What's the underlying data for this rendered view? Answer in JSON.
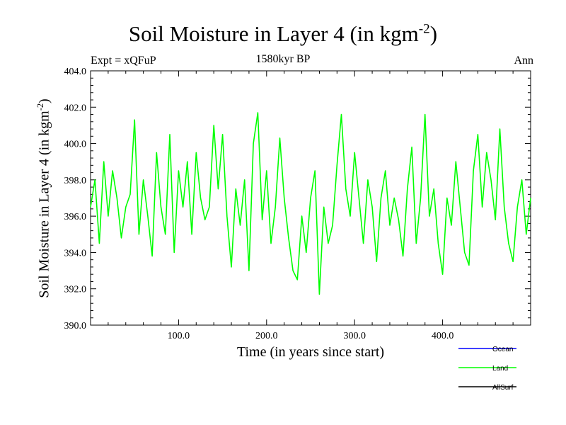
{
  "chart_data": {
    "type": "line",
    "title": "Soil Moisture in Layer 4 (in kgm",
    "title_sup": "-2",
    "title_end": ")",
    "subtitle": "1580kyr BP",
    "experiment": "Expt = xQFuP",
    "season": "Ann",
    "xlabel": "Time (in years since start)",
    "ylabel": "Soil Moisture in Layer 4 (in kgm",
    "ylabel_sup": "-2",
    "ylabel_end": ")",
    "xlim": [
      0,
      500
    ],
    "ylim": [
      390,
      404
    ],
    "xticks": [
      100,
      200,
      300,
      400
    ],
    "xtick_labels": [
      "100.0",
      "200.0",
      "300.0",
      "400.0"
    ],
    "yticks": [
      390,
      392,
      394,
      396,
      398,
      400,
      402,
      404
    ],
    "ytick_labels": [
      "390.0",
      "392.0",
      "394.0",
      "396.0",
      "398.0",
      "400.0",
      "402.0",
      "404.0"
    ],
    "legend": [
      {
        "name": "Ocean",
        "color": "#0000ff"
      },
      {
        "name": "Land",
        "color": "#00ff00"
      },
      {
        "name": "AllSurf",
        "color": "#000000"
      }
    ],
    "series": [
      {
        "name": "Land",
        "color": "#00ff00",
        "x": [
          0,
          5,
          10,
          15,
          20,
          25,
          30,
          35,
          40,
          45,
          50,
          55,
          60,
          65,
          70,
          75,
          80,
          85,
          90,
          95,
          100,
          105,
          110,
          115,
          120,
          125,
          130,
          135,
          140,
          145,
          150,
          155,
          160,
          165,
          170,
          175,
          180,
          185,
          190,
          195,
          200,
          205,
          210,
          215,
          220,
          225,
          230,
          235,
          240,
          245,
          250,
          255,
          260,
          265,
          270,
          275,
          280,
          285,
          290,
          295,
          300,
          305,
          310,
          315,
          320,
          325,
          330,
          335,
          340,
          345,
          350,
          355,
          360,
          365,
          370,
          375,
          380,
          385,
          390,
          395,
          400,
          405,
          410,
          415,
          420,
          425,
          430,
          435,
          440,
          445,
          450,
          455,
          460,
          465,
          470,
          475,
          480,
          485,
          490,
          495,
          500
        ],
        "values": [
          396.5,
          398.0,
          394.5,
          399.0,
          396.0,
          398.5,
          397.0,
          394.8,
          396.5,
          397.2,
          401.3,
          395.0,
          398.0,
          396.0,
          393.8,
          399.5,
          396.5,
          395.0,
          400.5,
          394.0,
          398.5,
          396.5,
          399.0,
          395.0,
          399.5,
          397.0,
          395.8,
          396.5,
          401.0,
          397.5,
          400.5,
          396.0,
          393.2,
          397.5,
          395.5,
          398.0,
          393.0,
          400.0,
          401.7,
          395.8,
          398.5,
          394.5,
          396.5,
          400.3,
          397.0,
          394.8,
          393.0,
          392.5,
          396.0,
          394.0,
          397.0,
          398.5,
          391.7,
          396.5,
          394.5,
          395.5,
          398.8,
          401.6,
          397.5,
          396.0,
          399.5,
          397.0,
          394.5,
          398.0,
          396.5,
          393.5,
          397.0,
          398.5,
          395.5,
          397.0,
          395.8,
          393.8,
          397.5,
          399.8,
          394.5,
          397.0,
          401.6,
          396.0,
          397.5,
          394.5,
          392.8,
          397.0,
          395.5,
          399.0,
          396.5,
          394.0,
          393.3,
          398.5,
          400.5,
          396.5,
          399.5,
          398.0,
          395.8,
          400.8,
          396.5,
          394.5,
          393.5,
          396.5,
          398.0,
          395.0,
          397.0
        ]
      }
    ]
  }
}
